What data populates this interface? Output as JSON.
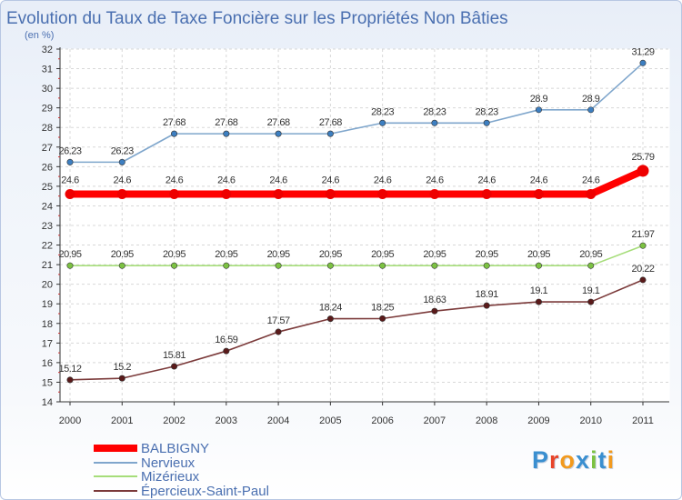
{
  "chart_data": {
    "type": "line",
    "title": "Evolution du Taux de Taxe Foncière sur les Propriétés Non Bâties",
    "subtitle": "(en %)",
    "x": [
      "2000",
      "2001",
      "2002",
      "2003",
      "2004",
      "2005",
      "2006",
      "2007",
      "2008",
      "2009",
      "2010",
      "2011"
    ],
    "ylim": [
      14,
      32
    ],
    "yticks": [
      14,
      15,
      16,
      17,
      18,
      19,
      20,
      21,
      22,
      23,
      24,
      25,
      26,
      27,
      28,
      29,
      30,
      31,
      32
    ],
    "grid": true,
    "legend_position": "bottom-left",
    "series": [
      {
        "name": "BALBIGNY",
        "color": "#ff0000",
        "emphasis": true,
        "values": [
          24.6,
          24.6,
          24.6,
          24.6,
          24.6,
          24.6,
          24.6,
          24.6,
          24.6,
          24.6,
          24.6,
          25.79
        ],
        "labels": [
          "24.6",
          "24.6",
          "24.6",
          "24.6",
          "24.6",
          "24.6",
          "24.6",
          "24.6",
          "24.6",
          "24.6",
          "24.6",
          "25.79"
        ]
      },
      {
        "name": "Nervieux",
        "color": "#7fa6cc",
        "marker": "#3d7fc1",
        "values": [
          26.23,
          26.23,
          27.68,
          27.68,
          27.68,
          27.68,
          28.23,
          28.23,
          28.23,
          28.9,
          28.9,
          31.29
        ],
        "labels": [
          "26.23",
          "26.23",
          "27.68",
          "27.68",
          "27.68",
          "27.68",
          "28.23",
          "28.23",
          "28.23",
          "28.9",
          "28.9",
          "31.29"
        ]
      },
      {
        "name": "Mizérieux",
        "color": "#a6dd7a",
        "marker": "#7cc242",
        "values": [
          20.95,
          20.95,
          20.95,
          20.95,
          20.95,
          20.95,
          20.95,
          20.95,
          20.95,
          20.95,
          20.95,
          21.97
        ],
        "labels": [
          "20.95",
          "20.95",
          "20.95",
          "20.95",
          "20.95",
          "20.95",
          "20.95",
          "20.95",
          "20.95",
          "20.95",
          "20.95",
          "21.97"
        ]
      },
      {
        "name": "Épercieux-Saint-Paul",
        "color": "#7b3a3a",
        "marker": "#5a1a1a",
        "values": [
          15.12,
          15.2,
          15.81,
          16.59,
          17.57,
          18.24,
          18.25,
          18.63,
          18.91,
          19.1,
          19.1,
          20.22
        ],
        "labels": [
          "15.12",
          "15.2",
          "15.81",
          "16.59",
          "17.57",
          "18.24",
          "18.25",
          "18.63",
          "18.91",
          "19.1",
          "19.1",
          "20.22"
        ]
      }
    ]
  },
  "logo": {
    "text": "Proxiti"
  }
}
